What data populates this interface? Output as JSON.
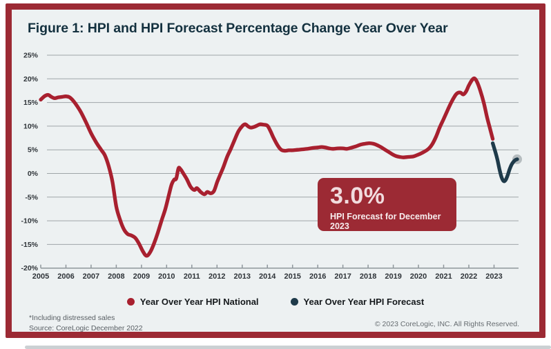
{
  "figure": {
    "title": "Figure 1: HPI and HPI Forecast Percentage Change Year Over Year",
    "callout": {
      "value": "3.0%",
      "label": "HPI Forecast for December 2023"
    },
    "footnote_line1": "*Including distressed sales",
    "footnote_line2": "Source: CoreLogic December 2022",
    "copyright": "© 2023 CoreLogic, INC. All Rights Reserved."
  },
  "legend": {
    "items": [
      {
        "label": "Year Over Year HPI National",
        "color": "#A8202F"
      },
      {
        "label": "Year Over Year HPI Forecast",
        "color": "#1E3A4A"
      }
    ]
  },
  "colors": {
    "border_red": "#9C2A34",
    "line_red": "#A8202F",
    "line_navy": "#1E3A4A",
    "card_background": "#EDF1F2",
    "gridline": "#9EA5A8",
    "marker_ring": "#B5BCBF"
  },
  "chart_data": {
    "type": "line",
    "title": "Figure 1: HPI and HPI Forecast Percentage Change Year Over Year",
    "xlabel": "",
    "ylabel": "",
    "grid": "horizontal",
    "legend_position": "bottom-center",
    "x_axis": {
      "ticks": [
        2005,
        2006,
        2007,
        2008,
        2009,
        2010,
        2011,
        2012,
        2013,
        2014,
        2015,
        2016,
        2017,
        2018,
        2019,
        2020,
        2021,
        2022,
        2023
      ],
      "range": [
        2004.8,
        2024.1
      ]
    },
    "y_axis": {
      "tick_values": [
        25,
        20,
        15,
        10,
        5,
        0,
        -5,
        -10,
        -15,
        -20
      ],
      "tick_labels": [
        "25%",
        "20%",
        "15%",
        "10%",
        "5%",
        "0%",
        "-5%",
        "-10%",
        "-15%",
        "-20%"
      ],
      "range": [
        -20,
        25
      ]
    },
    "annotation": {
      "text": "3.0%",
      "sub": "HPI Forecast for December 2023",
      "position": "center-right"
    },
    "marker_ring_color": "#B5BCBF",
    "series": [
      {
        "id": "hpi-national",
        "name": "Year Over Year HPI National",
        "color": "#A8202F",
        "unit": "percent",
        "points": [
          [
            2005.0,
            15.6
          ],
          [
            2005.08,
            16.0
          ],
          [
            2005.17,
            16.4
          ],
          [
            2005.3,
            16.6
          ],
          [
            2005.42,
            16.2
          ],
          [
            2005.55,
            15.9
          ],
          [
            2005.7,
            16.1
          ],
          [
            2005.85,
            16.2
          ],
          [
            2006.0,
            16.3
          ],
          [
            2006.15,
            16.1
          ],
          [
            2006.3,
            15.3
          ],
          [
            2006.45,
            14.2
          ],
          [
            2006.6,
            12.9
          ],
          [
            2006.8,
            10.8
          ],
          [
            2007.0,
            8.5
          ],
          [
            2007.2,
            6.6
          ],
          [
            2007.4,
            5.0
          ],
          [
            2007.55,
            3.8
          ],
          [
            2007.7,
            1.5
          ],
          [
            2007.85,
            -1.8
          ],
          [
            2008.0,
            -7.0
          ],
          [
            2008.15,
            -9.8
          ],
          [
            2008.3,
            -11.8
          ],
          [
            2008.45,
            -12.8
          ],
          [
            2008.6,
            -13.1
          ],
          [
            2008.75,
            -13.6
          ],
          [
            2008.9,
            -14.8
          ],
          [
            2009.05,
            -16.4
          ],
          [
            2009.2,
            -17.4
          ],
          [
            2009.35,
            -16.6
          ],
          [
            2009.5,
            -14.8
          ],
          [
            2009.65,
            -12.5
          ],
          [
            2009.8,
            -9.9
          ],
          [
            2009.95,
            -7.5
          ],
          [
            2010.1,
            -4.3
          ],
          [
            2010.2,
            -2.3
          ],
          [
            2010.3,
            -1.3
          ],
          [
            2010.38,
            -1.1
          ],
          [
            2010.47,
            1.1
          ],
          [
            2010.55,
            0.9
          ],
          [
            2010.65,
            0.1
          ],
          [
            2010.8,
            -1.2
          ],
          [
            2010.95,
            -2.8
          ],
          [
            2011.1,
            -3.5
          ],
          [
            2011.2,
            -3.1
          ],
          [
            2011.35,
            -3.9
          ],
          [
            2011.5,
            -4.4
          ],
          [
            2011.62,
            -3.9
          ],
          [
            2011.75,
            -4.2
          ],
          [
            2011.88,
            -3.7
          ],
          [
            2012.0,
            -1.9
          ],
          [
            2012.1,
            -0.6
          ],
          [
            2012.25,
            1.3
          ],
          [
            2012.4,
            3.5
          ],
          [
            2012.55,
            5.2
          ],
          [
            2012.7,
            7.1
          ],
          [
            2012.85,
            8.9
          ],
          [
            2013.0,
            10.0
          ],
          [
            2013.12,
            10.4
          ],
          [
            2013.25,
            9.9
          ],
          [
            2013.35,
            9.7
          ],
          [
            2013.5,
            9.9
          ],
          [
            2013.62,
            10.2
          ],
          [
            2013.72,
            10.4
          ],
          [
            2013.85,
            10.3
          ],
          [
            2014.0,
            10.1
          ],
          [
            2014.12,
            9.0
          ],
          [
            2014.25,
            7.5
          ],
          [
            2014.4,
            6.0
          ],
          [
            2014.55,
            5.0
          ],
          [
            2014.7,
            4.8
          ],
          [
            2014.85,
            4.9
          ],
          [
            2015.0,
            4.9
          ],
          [
            2015.2,
            5.0
          ],
          [
            2015.4,
            5.1
          ],
          [
            2015.6,
            5.2
          ],
          [
            2015.8,
            5.4
          ],
          [
            2016.0,
            5.5
          ],
          [
            2016.15,
            5.6
          ],
          [
            2016.3,
            5.5
          ],
          [
            2016.45,
            5.3
          ],
          [
            2016.6,
            5.2
          ],
          [
            2016.8,
            5.3
          ],
          [
            2017.0,
            5.3
          ],
          [
            2017.15,
            5.2
          ],
          [
            2017.3,
            5.4
          ],
          [
            2017.5,
            5.7
          ],
          [
            2017.7,
            6.1
          ],
          [
            2017.9,
            6.3
          ],
          [
            2018.05,
            6.4
          ],
          [
            2018.2,
            6.3
          ],
          [
            2018.35,
            6.0
          ],
          [
            2018.5,
            5.6
          ],
          [
            2018.65,
            5.1
          ],
          [
            2018.8,
            4.6
          ],
          [
            2018.95,
            4.1
          ],
          [
            2019.1,
            3.7
          ],
          [
            2019.25,
            3.5
          ],
          [
            2019.4,
            3.4
          ],
          [
            2019.6,
            3.5
          ],
          [
            2019.8,
            3.6
          ],
          [
            2020.0,
            4.0
          ],
          [
            2020.2,
            4.5
          ],
          [
            2020.4,
            5.2
          ],
          [
            2020.55,
            6.2
          ],
          [
            2020.7,
            7.8
          ],
          [
            2020.85,
            9.8
          ],
          [
            2021.0,
            11.5
          ],
          [
            2021.15,
            13.3
          ],
          [
            2021.3,
            15.0
          ],
          [
            2021.45,
            16.4
          ],
          [
            2021.55,
            17.0
          ],
          [
            2021.67,
            17.1
          ],
          [
            2021.78,
            16.7
          ],
          [
            2021.9,
            17.4
          ],
          [
            2022.0,
            18.6
          ],
          [
            2022.12,
            19.7
          ],
          [
            2022.22,
            20.1
          ],
          [
            2022.32,
            19.4
          ],
          [
            2022.45,
            17.6
          ],
          [
            2022.6,
            14.8
          ],
          [
            2022.72,
            12.0
          ],
          [
            2022.85,
            9.3
          ],
          [
            2022.95,
            7.3
          ]
        ]
      },
      {
        "id": "hpi-forecast",
        "name": "Year Over Year HPI Forecast",
        "color": "#1E3A4A",
        "unit": "percent",
        "end_marker": true,
        "points": [
          [
            2022.95,
            6.4
          ],
          [
            2023.05,
            4.6
          ],
          [
            2023.14,
            2.8
          ],
          [
            2023.22,
            0.8
          ],
          [
            2023.3,
            -0.8
          ],
          [
            2023.38,
            -1.6
          ],
          [
            2023.46,
            -1.4
          ],
          [
            2023.54,
            -0.4
          ],
          [
            2023.62,
            0.9
          ],
          [
            2023.7,
            1.9
          ],
          [
            2023.78,
            2.5
          ],
          [
            2023.85,
            2.85
          ],
          [
            2023.92,
            3.0
          ]
        ]
      }
    ]
  }
}
